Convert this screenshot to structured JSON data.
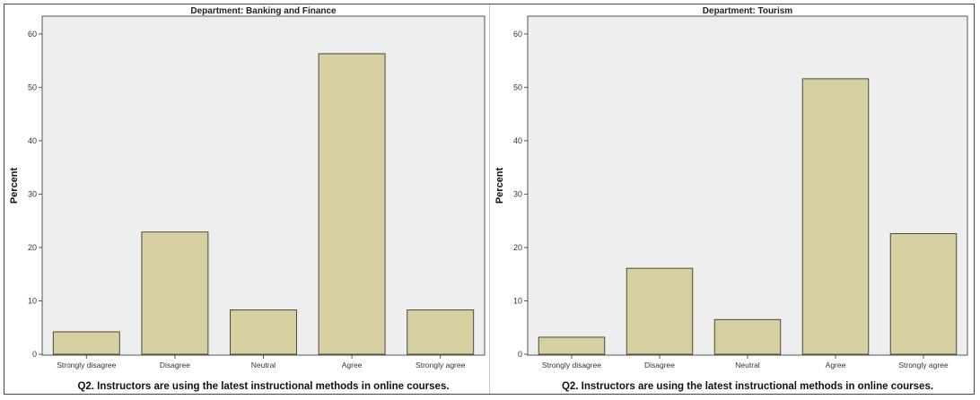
{
  "chart_data": [
    {
      "type": "bar",
      "title": "Department: Banking and Finance",
      "xlabel": "Q2. Instructors are using the latest instructional methods in online courses.",
      "ylabel": "Percent",
      "categories": [
        "Strongly disagree",
        "Disagree",
        "Neutral",
        "Agree",
        "Strongly agree"
      ],
      "values": [
        4.2,
        22.9,
        8.3,
        56.3,
        8.3
      ],
      "ylim": [
        0,
        63
      ],
      "yticks": [
        0,
        10,
        20,
        30,
        40,
        50,
        60
      ],
      "grid": false,
      "bar_color": "#d6cfa1",
      "plot_background": "#eeeeee"
    },
    {
      "type": "bar",
      "title": "Department: Tourism",
      "xlabel": "Q2. Instructors are using the latest instructional methods in online courses.",
      "ylabel": "Percent",
      "categories": [
        "Strongly disagree",
        "Disagree",
        "Neutral",
        "Agree",
        "Strongly agree"
      ],
      "values": [
        3.2,
        16.1,
        6.5,
        51.6,
        22.6
      ],
      "ylim": [
        0,
        63
      ],
      "yticks": [
        0,
        10,
        20,
        30,
        40,
        50,
        60
      ],
      "grid": false,
      "bar_color": "#d6cfa1",
      "plot_background": "#eeeeee"
    }
  ]
}
